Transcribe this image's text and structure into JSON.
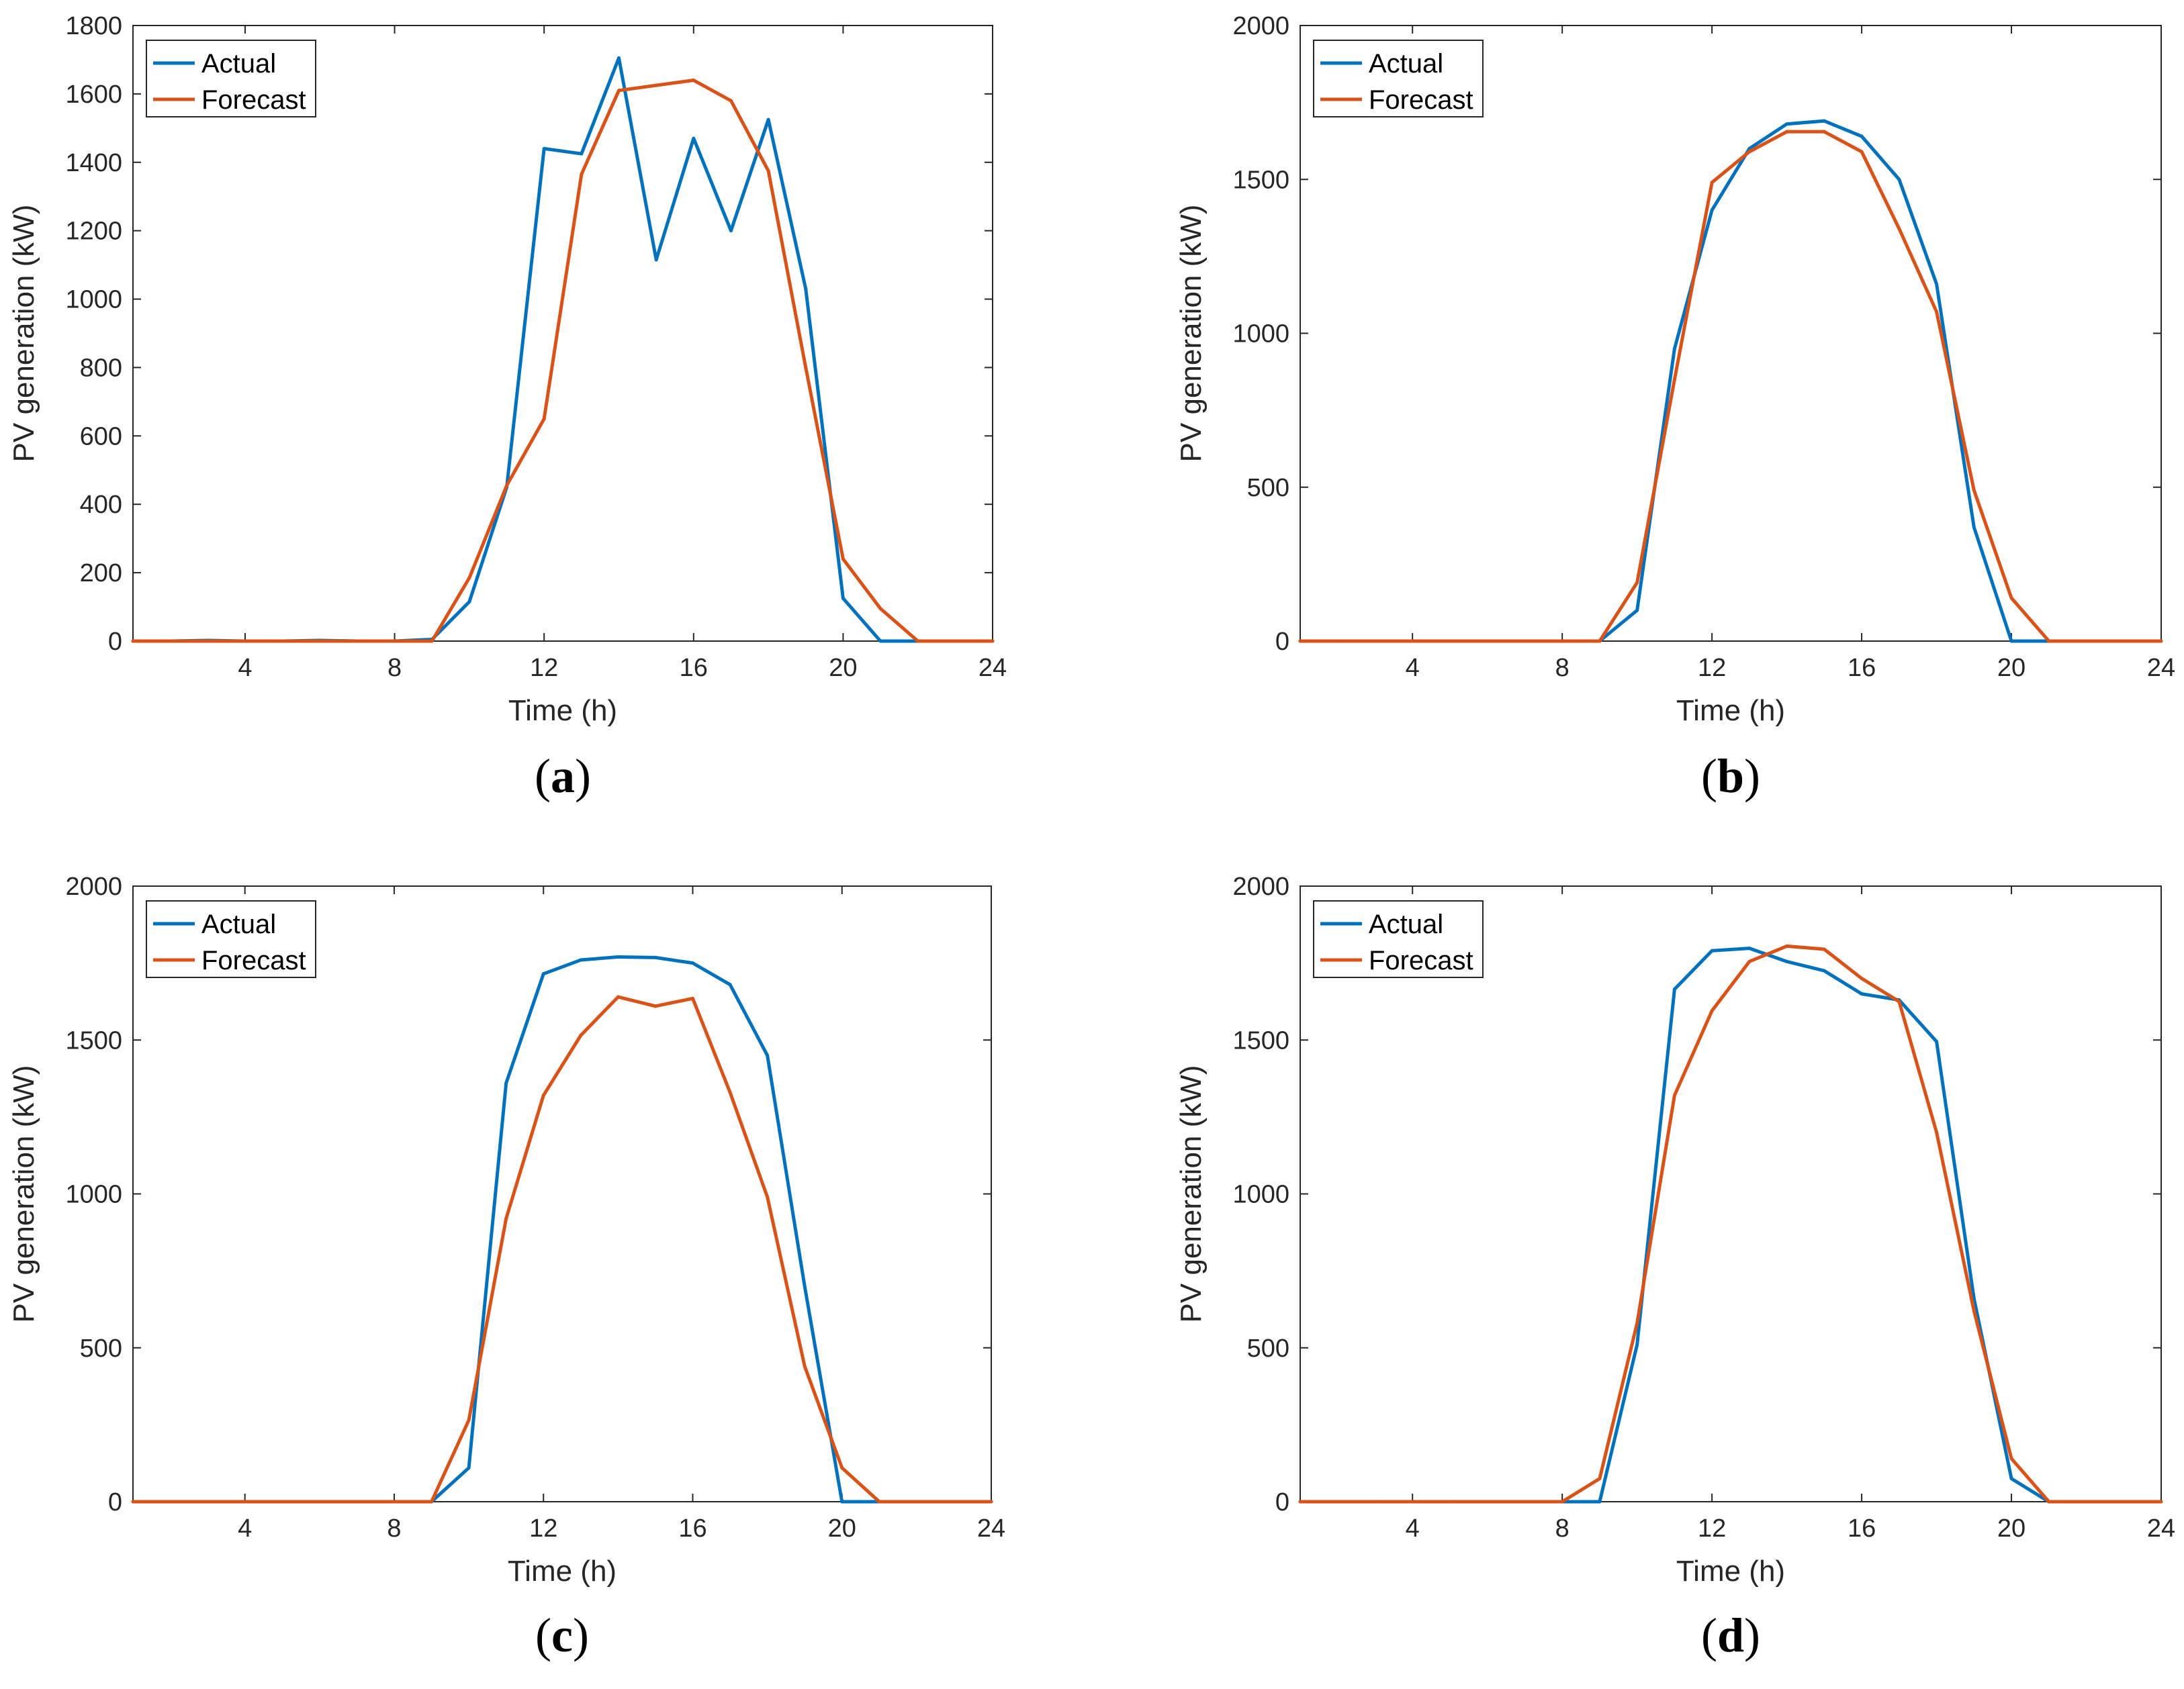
{
  "chart_data": [
    {
      "type": "line",
      "panel_label": "a",
      "xlabel": "Time (h)",
      "ylabel": "PV generation (kW)",
      "xlim": [
        1,
        24
      ],
      "ylim": [
        0,
        1800
      ],
      "xticks": [
        4,
        8,
        12,
        16,
        20,
        24
      ],
      "yticks": [
        0,
        200,
        400,
        600,
        800,
        1000,
        1200,
        1400,
        1600,
        1800
      ],
      "legend_position": "top-left",
      "x": [
        1,
        2,
        3,
        4,
        5,
        6,
        7,
        8,
        9,
        10,
        11,
        12,
        13,
        14,
        15,
        16,
        17,
        18,
        19,
        20,
        21,
        22,
        23,
        24
      ],
      "series": [
        {
          "name": "Actual",
          "color": "#0072BD",
          "values": [
            0,
            0,
            2,
            0,
            0,
            2,
            0,
            0,
            5,
            115,
            450,
            1440,
            1425,
            1705,
            1115,
            1470,
            1200,
            1525,
            1030,
            125,
            0,
            0,
            0,
            0
          ]
        },
        {
          "name": "Forecast",
          "color": "#D95319",
          "values": [
            0,
            0,
            0,
            0,
            0,
            0,
            0,
            0,
            0,
            185,
            455,
            650,
            1365,
            1610,
            1625,
            1640,
            1580,
            1375,
            800,
            240,
            95,
            0,
            0,
            0
          ]
        }
      ]
    },
    {
      "type": "line",
      "panel_label": "b",
      "xlabel": "Time (h)",
      "ylabel": "PV generation (kW)",
      "xlim": [
        1,
        24
      ],
      "ylim": [
        0,
        2000
      ],
      "xticks": [
        4,
        8,
        12,
        16,
        20,
        24
      ],
      "yticks": [
        0,
        500,
        1000,
        1500,
        2000
      ],
      "legend_position": "top-left",
      "x": [
        1,
        2,
        3,
        4,
        5,
        6,
        7,
        8,
        9,
        10,
        11,
        12,
        13,
        14,
        15,
        16,
        17,
        18,
        19,
        20,
        21,
        22,
        23,
        24
      ],
      "series": [
        {
          "name": "Actual",
          "color": "#0072BD",
          "values": [
            0,
            0,
            0,
            0,
            0,
            0,
            0,
            0,
            0,
            100,
            950,
            1400,
            1600,
            1680,
            1690,
            1640,
            1500,
            1160,
            370,
            0,
            0,
            0,
            0,
            0
          ]
        },
        {
          "name": "Forecast",
          "color": "#D95319",
          "values": [
            0,
            0,
            0,
            0,
            0,
            0,
            0,
            0,
            0,
            190,
            850,
            1490,
            1590,
            1655,
            1655,
            1590,
            1340,
            1070,
            490,
            140,
            0,
            0,
            0,
            0
          ]
        }
      ]
    },
    {
      "type": "line",
      "panel_label": "c",
      "xlabel": "Time (h)",
      "ylabel": "PV generation (kW)",
      "xlim": [
        1,
        24
      ],
      "ylim": [
        0,
        2000
      ],
      "xticks": [
        4,
        8,
        12,
        16,
        20,
        24
      ],
      "yticks": [
        0,
        500,
        1000,
        1500,
        2000
      ],
      "legend_position": "top-left",
      "x": [
        1,
        2,
        3,
        4,
        5,
        6,
        7,
        8,
        9,
        10,
        11,
        12,
        13,
        14,
        15,
        16,
        17,
        18,
        19,
        20,
        21,
        22,
        23,
        24
      ],
      "series": [
        {
          "name": "Actual",
          "color": "#0072BD",
          "values": [
            0,
            0,
            0,
            0,
            0,
            0,
            0,
            0,
            0,
            110,
            1360,
            1715,
            1760,
            1770,
            1768,
            1750,
            1680,
            1450,
            700,
            0,
            0,
            0,
            0,
            0
          ]
        },
        {
          "name": "Forecast",
          "color": "#D95319",
          "values": [
            0,
            0,
            0,
            0,
            0,
            0,
            0,
            0,
            0,
            265,
            920,
            1320,
            1515,
            1640,
            1610,
            1635,
            1330,
            990,
            440,
            110,
            0,
            0,
            0,
            0
          ]
        }
      ]
    },
    {
      "type": "line",
      "panel_label": "d",
      "xlabel": "Time (h)",
      "ylabel": "PV generation (kW)",
      "xlim": [
        1,
        24
      ],
      "ylim": [
        0,
        2000
      ],
      "xticks": [
        4,
        8,
        12,
        16,
        20,
        24
      ],
      "yticks": [
        0,
        500,
        1000,
        1500,
        2000
      ],
      "legend_position": "top-left",
      "x": [
        1,
        2,
        3,
        4,
        5,
        6,
        7,
        8,
        9,
        10,
        11,
        12,
        13,
        14,
        15,
        16,
        17,
        18,
        19,
        20,
        21,
        22,
        23,
        24
      ],
      "series": [
        {
          "name": "Actual",
          "color": "#0072BD",
          "values": [
            0,
            0,
            0,
            0,
            0,
            0,
            0,
            0,
            0,
            510,
            1665,
            1790,
            1798,
            1755,
            1725,
            1650,
            1630,
            1495,
            660,
            75,
            0,
            0,
            0,
            0
          ]
        },
        {
          "name": "Forecast",
          "color": "#D95319",
          "values": [
            0,
            0,
            0,
            0,
            0,
            0,
            0,
            0,
            75,
            580,
            1320,
            1595,
            1755,
            1805,
            1795,
            1700,
            1625,
            1200,
            620,
            140,
            0,
            0,
            0,
            0
          ]
        }
      ]
    }
  ]
}
